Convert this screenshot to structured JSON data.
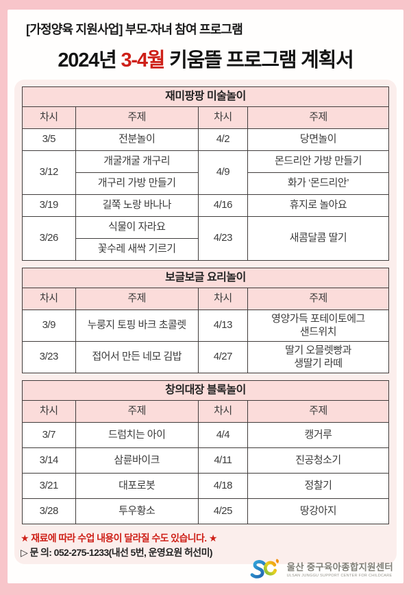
{
  "page": {
    "subtitle": "[가정양육 지원사업] 부모-자녀 참여 프로그램",
    "title_prefix": "2024년 ",
    "title_highlight": "3-4월",
    "title_suffix": " 키움뜰 프로그램 계획서"
  },
  "tables": [
    {
      "title": "재미팡팡 미술놀이",
      "headers": [
        "차시",
        "주제",
        "차시",
        "주제"
      ],
      "row_class": "rA",
      "rows": [
        [
          {
            "t": "3/5"
          },
          {
            "t": "전분놀이"
          },
          {
            "t": "4/2"
          },
          {
            "t": "당면놀이"
          }
        ],
        [
          {
            "t": "3/12",
            "rs": 2
          },
          {
            "t": "개굴개굴 개구리"
          },
          {
            "t": "4/9",
            "rs": 2
          },
          {
            "t": "몬드리안 가방 만들기"
          }
        ],
        [
          {
            "t": "개구리 가방 만들기"
          },
          {
            "t": "화가 ‘몬드리안’"
          }
        ],
        [
          {
            "t": "3/19"
          },
          {
            "t": "길쭉 노랑 바나나"
          },
          {
            "t": "4/16"
          },
          {
            "t": "휴지로 놀아요"
          }
        ],
        [
          {
            "t": "3/26",
            "rs": 2
          },
          {
            "t": "식물이 자라요"
          },
          {
            "t": "4/23",
            "rs": 2
          },
          {
            "t": "새콤달콤 딸기",
            "rs": 2
          }
        ],
        [
          {
            "t": "꽃수레 새싹 기르기"
          }
        ]
      ]
    },
    {
      "title": "보글보글 요리놀이",
      "headers": [
        "차시",
        "주제",
        "차시",
        "주제"
      ],
      "row_class": "rB",
      "rows": [
        [
          {
            "t": "3/9"
          },
          {
            "t": "누룽지 토핑 바크 초콜렛"
          },
          {
            "t": "4/13"
          },
          {
            "t": "영양가득 포테이토에그\n샌드위치"
          }
        ],
        [
          {
            "t": "3/23"
          },
          {
            "t": "접어서 만든 네모 김밥"
          },
          {
            "t": "4/27"
          },
          {
            "t": "딸기 오믈렛빵과\n생딸기 라떼"
          }
        ]
      ]
    },
    {
      "title": "창의대장 블록놀이",
      "headers": [
        "차시",
        "주제",
        "차시",
        "주제"
      ],
      "row_class": "rC",
      "rows": [
        [
          {
            "t": "3/7"
          },
          {
            "t": "드럼치는 아이"
          },
          {
            "t": "4/4"
          },
          {
            "t": "캥거루"
          }
        ],
        [
          {
            "t": "3/14"
          },
          {
            "t": "삼륜바이크"
          },
          {
            "t": "4/11"
          },
          {
            "t": "진공청소기"
          }
        ],
        [
          {
            "t": "3/21"
          },
          {
            "t": "대포로봇"
          },
          {
            "t": "4/18"
          },
          {
            "t": "정찰기"
          }
        ],
        [
          {
            "t": "3/28"
          },
          {
            "t": "투우황소"
          },
          {
            "t": "4/25"
          },
          {
            "t": "땅강아지"
          }
        ]
      ]
    }
  ],
  "notes": {
    "materials": "★ 재료에 따라 수업 내용이 달라질 수도 있습니다. ★",
    "contact": "▷ 문 의: 052-275-1233(내선 5번, 운영요원 허선미)"
  },
  "logo": {
    "org_ko": "울산 중구육아종합지원센터",
    "org_en": "ULSAN JUNGGU SUPPORT CENTER FOR CHILDCARE"
  },
  "colors": {
    "page_bg": "#f8c5ca",
    "card_bg": "#fffefd",
    "panel_bg": "#fbeeec",
    "header_row_bg": "#fbdcda",
    "table_border": "#403c3b",
    "accent_red": "#ce2018",
    "text_dark": "#1a1a1a",
    "cell_text": "#3b3b3b"
  }
}
